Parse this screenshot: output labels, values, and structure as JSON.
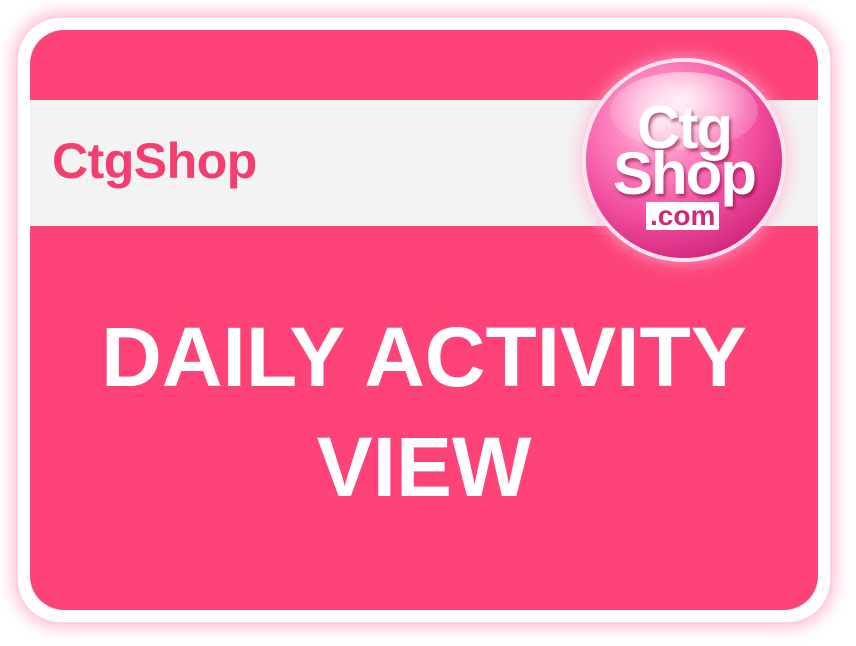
{
  "brand": {
    "name": "CtgShop",
    "accent_color": "#fd4377",
    "banner_color": "#f3f3f3"
  },
  "logo": {
    "line1": "Ctg",
    "line2": "Shop",
    "line3": ".com"
  },
  "headline": {
    "line1": "DAILY ACTIVITY",
    "line2": "VIEW"
  }
}
